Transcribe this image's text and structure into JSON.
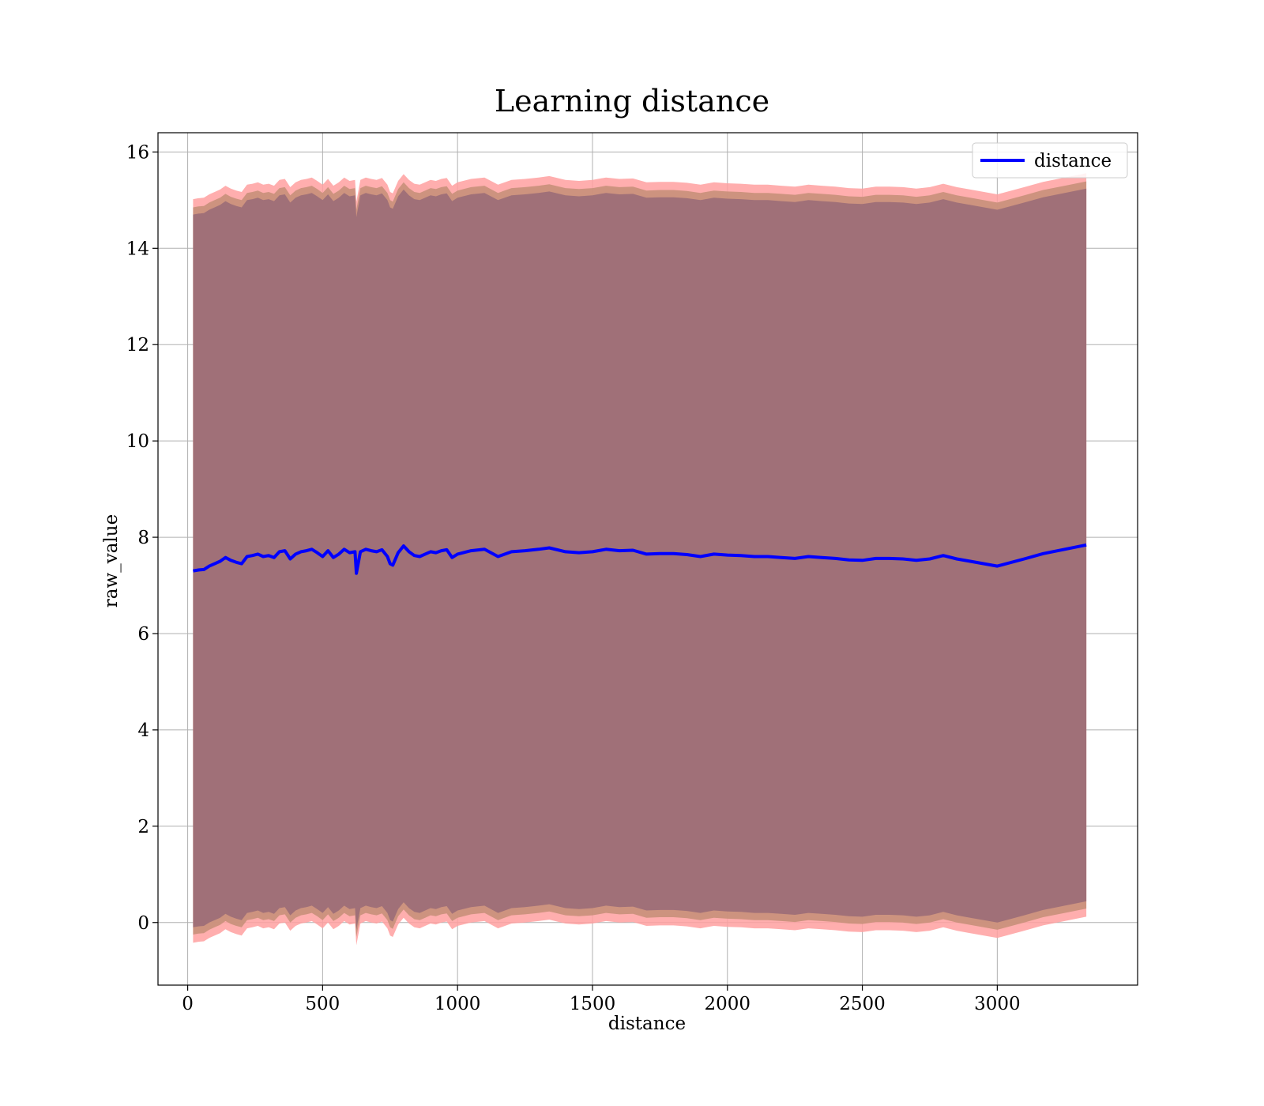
{
  "chart_data": {
    "type": "line",
    "title": "Learning distance",
    "xlabel": "distance",
    "ylabel": "raw_value",
    "xlim": [
      -110,
      3520
    ],
    "ylim": [
      -1.3,
      16.4
    ],
    "xticks": [
      0,
      500,
      1000,
      1500,
      2000,
      2500,
      3000
    ],
    "yticks": [
      0,
      2,
      4,
      6,
      8,
      10,
      12,
      14,
      16
    ],
    "grid": true,
    "legend": {
      "placement": "top-right",
      "entries": [
        "distance"
      ]
    },
    "colors": {
      "line": "#0000ff",
      "band_outer": "#ffa0a0",
      "band_middle": "#c8907a",
      "band_inner": "#a07078",
      "grid": "#b0b0b0"
    },
    "series": [
      {
        "name": "distance",
        "x": [
          20,
          40,
          60,
          80,
          100,
          120,
          140,
          160,
          180,
          200,
          220,
          240,
          260,
          280,
          300,
          320,
          340,
          360,
          380,
          400,
          420,
          440,
          460,
          480,
          500,
          520,
          540,
          560,
          580,
          600,
          620,
          625,
          640,
          660,
          680,
          700,
          720,
          740,
          750,
          760,
          780,
          800,
          820,
          840,
          860,
          880,
          900,
          920,
          940,
          960,
          980,
          1000,
          1050,
          1100,
          1150,
          1200,
          1250,
          1300,
          1340,
          1400,
          1450,
          1500,
          1550,
          1600,
          1650,
          1700,
          1750,
          1800,
          1850,
          1900,
          1950,
          2000,
          2050,
          2100,
          2150,
          2200,
          2250,
          2300,
          2350,
          2400,
          2450,
          2500,
          2550,
          2600,
          2650,
          2700,
          2750,
          2800,
          2850,
          2900,
          3000,
          3100,
          3170,
          3250,
          3330
        ],
        "values": [
          7.3,
          7.32,
          7.33,
          7.4,
          7.45,
          7.5,
          7.58,
          7.52,
          7.48,
          7.45,
          7.6,
          7.62,
          7.65,
          7.6,
          7.62,
          7.58,
          7.7,
          7.72,
          7.55,
          7.65,
          7.7,
          7.72,
          7.75,
          7.68,
          7.6,
          7.72,
          7.58,
          7.65,
          7.75,
          7.68,
          7.7,
          7.25,
          7.7,
          7.75,
          7.72,
          7.7,
          7.74,
          7.6,
          7.45,
          7.42,
          7.68,
          7.82,
          7.7,
          7.62,
          7.6,
          7.65,
          7.7,
          7.68,
          7.72,
          7.74,
          7.58,
          7.65,
          7.72,
          7.75,
          7.6,
          7.7,
          7.72,
          7.75,
          7.78,
          7.7,
          7.68,
          7.7,
          7.75,
          7.72,
          7.73,
          7.65,
          7.66,
          7.66,
          7.64,
          7.6,
          7.65,
          7.63,
          7.62,
          7.6,
          7.6,
          7.58,
          7.56,
          7.6,
          7.58,
          7.56,
          7.53,
          7.52,
          7.56,
          7.56,
          7.55,
          7.52,
          7.55,
          7.62,
          7.55,
          7.5,
          7.4,
          7.55,
          7.66,
          7.75,
          7.84
        ]
      }
    ],
    "bands": [
      {
        "lower_offset": -7.72,
        "upper_offset": 7.72
      },
      {
        "lower_offset": -7.55,
        "upper_offset": 7.55
      },
      {
        "lower_offset": -7.4,
        "upper_offset": 7.4
      }
    ]
  }
}
